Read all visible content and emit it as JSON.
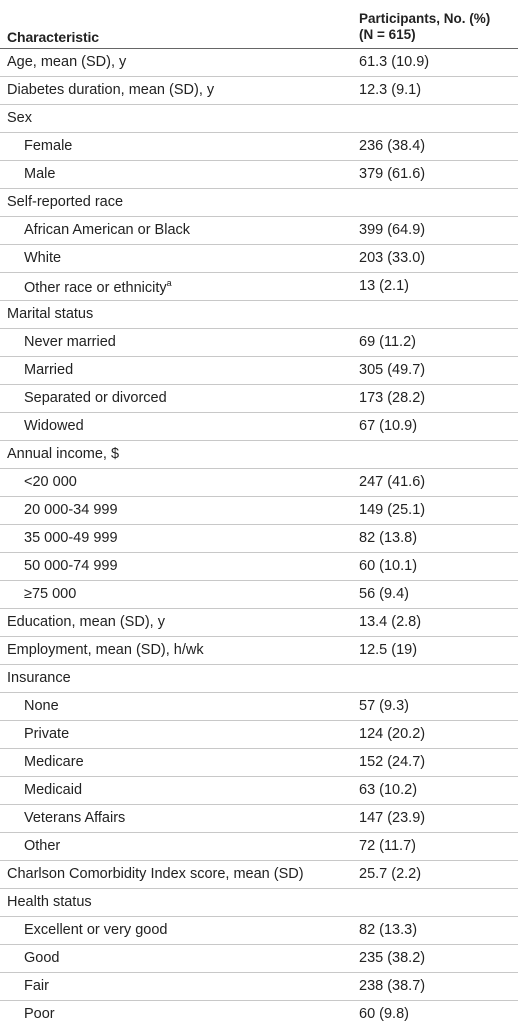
{
  "header": {
    "characteristic": "Characteristic",
    "participants_line1": "Participants, No. (%)",
    "participants_line2": "(N = 615)"
  },
  "rows": [
    {
      "label": "Age, mean (SD), y",
      "value": "61.3 (10.9)",
      "indent": false
    },
    {
      "label": "Diabetes duration, mean (SD), y",
      "value": "12.3 (9.1)",
      "indent": false
    },
    {
      "label": "Sex",
      "value": "",
      "indent": false
    },
    {
      "label": "Female",
      "value": "236 (38.4)",
      "indent": true
    },
    {
      "label": "Male",
      "value": "379 (61.6)",
      "indent": true
    },
    {
      "label": "Self-reported race",
      "value": "",
      "indent": false
    },
    {
      "label": "African American or Black",
      "value": "399 (64.9)",
      "indent": true
    },
    {
      "label": "White",
      "value": "203 (33.0)",
      "indent": true
    },
    {
      "label": "Other race or ethnicity",
      "sup": "a",
      "value": "13 (2.1)",
      "indent": true
    },
    {
      "label": "Marital status",
      "value": "",
      "indent": false
    },
    {
      "label": "Never married",
      "value": "69 (11.2)",
      "indent": true
    },
    {
      "label": "Married",
      "value": "305 (49.7)",
      "indent": true
    },
    {
      "label": "Separated or divorced",
      "value": "173 (28.2)",
      "indent": true
    },
    {
      "label": "Widowed",
      "value": "67 (10.9)",
      "indent": true
    },
    {
      "label": "Annual income, $",
      "value": "",
      "indent": false
    },
    {
      "label": "<20 000",
      "value": "247 (41.6)",
      "indent": true
    },
    {
      "label": "20 000-34 999",
      "value": "149 (25.1)",
      "indent": true
    },
    {
      "label": "35 000-49 999",
      "value": "82 (13.8)",
      "indent": true
    },
    {
      "label": "50 000-74 999",
      "value": "60 (10.1)",
      "indent": true
    },
    {
      "label": "≥75 000",
      "value": "56 (9.4)",
      "indent": true
    },
    {
      "label": "Education, mean (SD), y",
      "value": "13.4 (2.8)",
      "indent": false
    },
    {
      "label": "Employment, mean (SD), h/wk",
      "value": "12.5 (19)",
      "indent": false
    },
    {
      "label": "Insurance",
      "value": "",
      "indent": false
    },
    {
      "label": "None",
      "value": "57 (9.3)",
      "indent": true
    },
    {
      "label": "Private",
      "value": "124 (20.2)",
      "indent": true
    },
    {
      "label": "Medicare",
      "value": "152 (24.7)",
      "indent": true
    },
    {
      "label": "Medicaid",
      "value": "63 (10.2)",
      "indent": true
    },
    {
      "label": "Veterans Affairs",
      "value": "147 (23.9)",
      "indent": true
    },
    {
      "label": "Other",
      "value": "72 (11.7)",
      "indent": true
    },
    {
      "label": "Charlson Comorbidity Index score, mean (SD)",
      "value": "25.7 (2.2)",
      "indent": false
    },
    {
      "label": "Health status",
      "value": "",
      "indent": false
    },
    {
      "label": "Excellent or very good",
      "value": "82 (13.3)",
      "indent": true
    },
    {
      "label": "Good",
      "value": "235 (38.2)",
      "indent": true
    },
    {
      "label": "Fair",
      "value": "238 (38.7)",
      "indent": true
    },
    {
      "label": "Poor",
      "value": "60 (9.8)",
      "indent": true
    }
  ]
}
